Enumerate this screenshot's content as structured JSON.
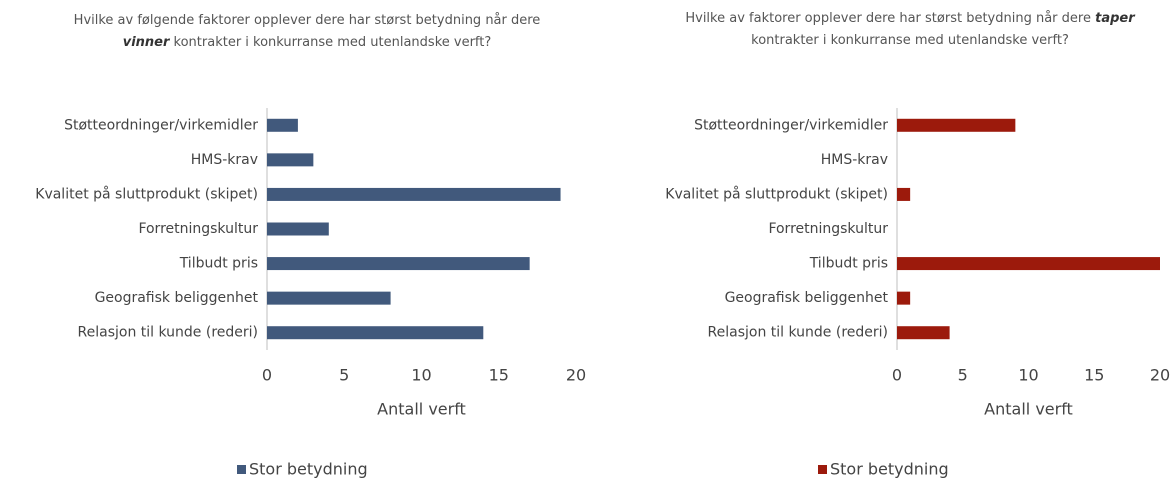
{
  "chart_data": [
    {
      "type": "bar",
      "orientation": "horizontal",
      "title": [
        {
          "text": "Hvilke av følgende faktorer opplever dere har størst betydning når dere "
        },
        {
          "text": "vinner",
          "emphasis": true
        },
        {
          "text": " kontrakter i konkurranse med utenlandske verft?"
        }
      ],
      "categories": [
        "Støtteordninger/virkemidler",
        "HMS-krav",
        "Kvalitet på sluttprodukt (skipet)",
        "Forretningskultur",
        "Tilbudt pris",
        "Geografisk beliggenhet",
        "Relasjon til kunde (rederi)"
      ],
      "series": [
        {
          "name": "Stor betydning",
          "color": "#41597c",
          "values": [
            2,
            3,
            19,
            4,
            17,
            8,
            14
          ]
        }
      ],
      "xlim": [
        0,
        20
      ],
      "xticks": [
        0,
        5,
        10,
        15,
        20
      ],
      "xlabel": "Antall verft",
      "legend": "bottom"
    },
    {
      "type": "bar",
      "orientation": "horizontal",
      "title": [
        {
          "text": "Hvilke av faktorer opplever dere har størst betydning når dere "
        },
        {
          "text": "taper",
          "emphasis": true
        },
        {
          "text": " kontrakter i konkurranse med utenlandske verft?"
        }
      ],
      "categories": [
        "Støtteordninger/virkemidler",
        "HMS-krav",
        "Kvalitet på sluttprodukt (skipet)",
        "Forretningskultur",
        "Tilbudt pris",
        "Geografisk beliggenhet",
        "Relasjon til kunde (rederi)"
      ],
      "series": [
        {
          "name": "Stor betydning",
          "color": "#9c1a0c",
          "values": [
            9,
            0,
            1,
            0,
            20,
            1,
            4
          ]
        }
      ],
      "xlim": [
        0,
        20
      ],
      "xticks": [
        0,
        5,
        10,
        15,
        20
      ],
      "xlabel": "Antall verft",
      "legend": "bottom"
    }
  ]
}
